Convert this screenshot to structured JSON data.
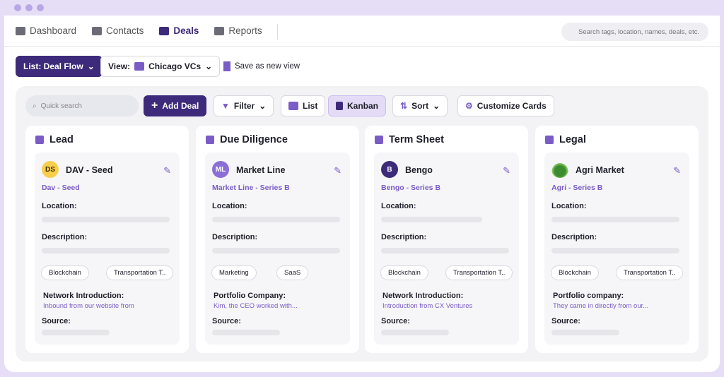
{
  "nav": {
    "items": [
      "Dashboard",
      "Contacts",
      "Deals",
      "Reports"
    ],
    "search": "Search tags, location, names, deals, etc."
  },
  "toolbar": {
    "list": "List: Deal Flow",
    "view_label": "View:",
    "view": "Chicago VCs",
    "save": "Save as new view"
  },
  "board_toolbar": {
    "search": "Quick search",
    "add": "Add Deal",
    "filter": "Filter",
    "list": "List",
    "kanban": "Kanban",
    "sort": "Sort",
    "customize": "Customize Cards"
  },
  "columns": [
    {
      "title": "Lead",
      "card": {
        "avatar": "DS",
        "name": "DAV - Seed",
        "subtitle": "Dav - Seed",
        "location_label": "Location:",
        "description_label": "Description:",
        "tags": [
          "Blockchain",
          "Transportation T.."
        ],
        "field_label": "Network Introduction:",
        "field_value": "Inbound from our website from",
        "source_label": "Source:"
      }
    },
    {
      "title": "Due Diligence",
      "card": {
        "avatar": "ML",
        "name": "Market Line",
        "subtitle": "Market Line - Series B",
        "location_label": "Location:",
        "description_label": "Description:",
        "tags": [
          "Marketing",
          "SaaS"
        ],
        "field_label": "Portfolio Company:",
        "field_value": "Kim, the CEO worked with...",
        "source_label": "Source:"
      }
    },
    {
      "title": "Term Sheet",
      "card": {
        "avatar": "B",
        "name": "Bengo",
        "subtitle": "Bengo - Series B",
        "location_label": "Location:",
        "description_label": "Description:",
        "tags": [
          "Blockchain",
          "Transportation T.."
        ],
        "field_label": "Network Introduction:",
        "field_value": "Introduction from CX Ventures",
        "source_label": "Source:"
      }
    },
    {
      "title": "Legal",
      "card": {
        "name": "Agri Market",
        "subtitle": "Agri - Series B",
        "location_label": "Location:",
        "description_label": "Description:",
        "tags": [
          "Blockchain",
          "Transportation T.."
        ],
        "field_label": "Portfolio company:",
        "field_value": "They came in directly from our...",
        "source_label": "Source:"
      }
    }
  ]
}
